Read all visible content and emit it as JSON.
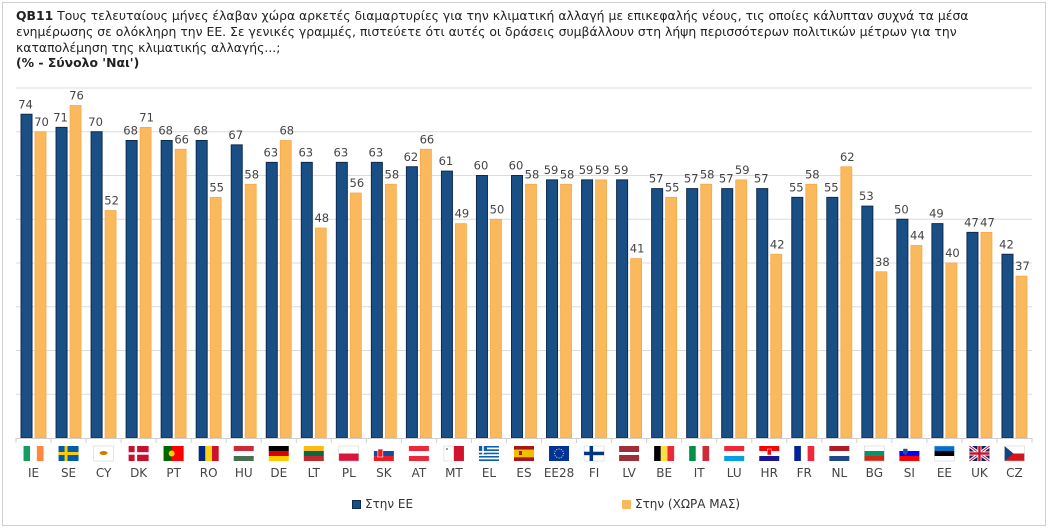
{
  "header": {
    "question_code": "QB11",
    "question_text": " Τους τελευταίους μήνες έλαβαν χώρα αρκετές διαμαρτυρίες για την κλιματική αλλαγή με επικεφαλής νέους, τις οποίες κάλυπταν συχνά τα μέσα ενημέρωσης σε ολόκληρη την ΕΕ. Σε γενικές γραμμές, πιστεύετε ότι αυτές οι δράσεις συμβάλλουν στη λήψη περισσότερων πολιτικών μέτρων για την καταπολέμηση της κλιματικής αλλαγής...;",
    "subtitle": "(% - Σύνολο 'Ναι')"
  },
  "colors": {
    "eu": "#1a4f85",
    "eu_border": "#0d2a4f",
    "country": "#fbb95e",
    "country_border": "#f5a94a",
    "grid": "#dcdcdc"
  },
  "chart_data": {
    "type": "bar",
    "title": "QB11 (% - Σύνολο 'Ναι')",
    "xlabel": "",
    "ylabel": "",
    "ylim": [
      0,
      80
    ],
    "grid": true,
    "gridline_step": 10,
    "legend_position": "bottom",
    "categories": [
      "IE",
      "SE",
      "CY",
      "DK",
      "PT",
      "RO",
      "HU",
      "DE",
      "LT",
      "PL",
      "SK",
      "AT",
      "MT",
      "EL",
      "ES",
      "EE28",
      "FI",
      "LV",
      "BE",
      "IT",
      "LU",
      "HR",
      "FR",
      "NL",
      "BG",
      "SI",
      "EE",
      "UK",
      "CZ"
    ],
    "series": [
      {
        "name": "Στην ΕΕ",
        "values": [
          74,
          71,
          70,
          68,
          68,
          68,
          67,
          63,
          63,
          63,
          63,
          62,
          61,
          60,
          60,
          59,
          59,
          59,
          57,
          57,
          57,
          57,
          55,
          55,
          53,
          50,
          49,
          47,
          42
        ]
      },
      {
        "name": "Στην (ΧΩΡΑ ΜΑΣ)",
        "values": [
          70,
          76,
          52,
          71,
          66,
          55,
          58,
          68,
          48,
          56,
          58,
          66,
          49,
          50,
          58,
          58,
          59,
          41,
          55,
          58,
          59,
          42,
          58,
          62,
          38,
          44,
          40,
          47,
          37
        ]
      }
    ]
  },
  "legend": {
    "items": [
      {
        "label": "Στην ΕΕ",
        "color": "#1a4f85"
      },
      {
        "label": "Στην (ΧΩΡΑ ΜΑΣ)",
        "color": "#fbb95e"
      }
    ]
  },
  "flags": {
    "IE": "flag-ireland-icon",
    "SE": "flag-sweden-icon",
    "CY": "flag-cyprus-icon",
    "DK": "flag-denmark-icon",
    "PT": "flag-portugal-icon",
    "RO": "flag-romania-icon",
    "HU": "flag-hungary-icon",
    "DE": "flag-germany-icon",
    "LT": "flag-lithuania-icon",
    "PL": "flag-poland-icon",
    "SK": "flag-slovakia-icon",
    "AT": "flag-austria-icon",
    "MT": "flag-malta-icon",
    "EL": "flag-greece-icon",
    "ES": "flag-spain-icon",
    "EE28": "flag-eu-icon",
    "FI": "flag-finland-icon",
    "LV": "flag-latvia-icon",
    "BE": "flag-belgium-icon",
    "IT": "flag-italy-icon",
    "LU": "flag-luxembourg-icon",
    "HR": "flag-croatia-icon",
    "FR": "flag-france-icon",
    "NL": "flag-netherlands-icon",
    "BG": "flag-bulgaria-icon",
    "SI": "flag-slovenia-icon",
    "EE": "flag-estonia-icon",
    "UK": "flag-uk-icon",
    "CZ": "flag-czechia-icon"
  }
}
